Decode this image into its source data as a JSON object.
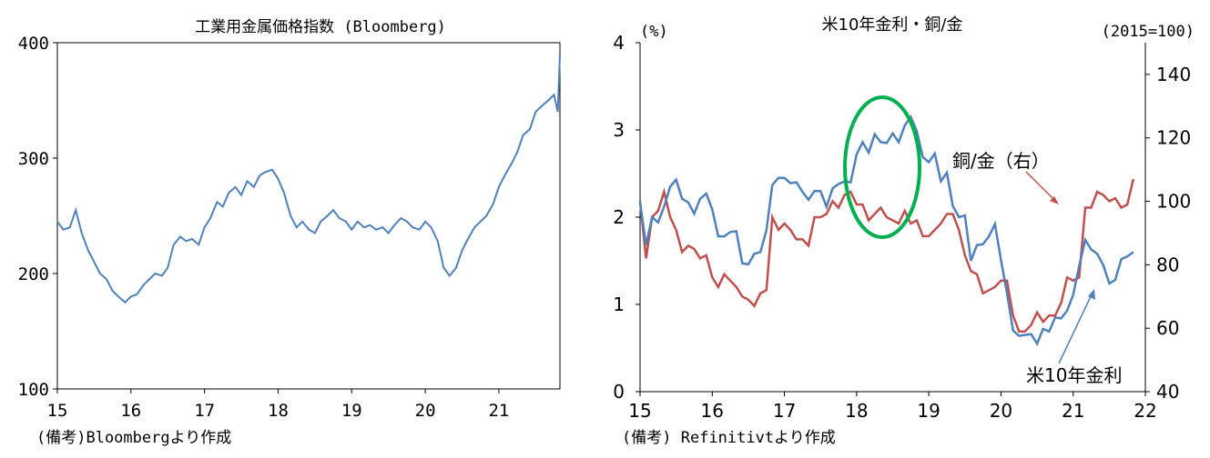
{
  "chart_data": [
    {
      "type": "line",
      "title": "工業用金属価格指数 (Bloomberg)",
      "note": "(備考)Bloombergより作成",
      "x_ticks": [
        "15",
        "16",
        "17",
        "18",
        "19",
        "20",
        "21"
      ],
      "y_ticks": [
        "100",
        "200",
        "300",
        "400"
      ],
      "ylim": [
        100,
        400
      ],
      "xlim": [
        2015.0,
        2021.83
      ],
      "grid": false,
      "series": [
        {
          "color": "#4f81bd",
          "x": [
            2015.0,
            2015.08,
            2015.17,
            2015.25,
            2015.33,
            2015.42,
            2015.5,
            2015.58,
            2015.67,
            2015.75,
            2015.83,
            2015.92,
            2016.0,
            2016.08,
            2016.17,
            2016.25,
            2016.33,
            2016.42,
            2016.5,
            2016.58,
            2016.67,
            2016.75,
            2016.83,
            2016.92,
            2017.0,
            2017.08,
            2017.17,
            2017.25,
            2017.33,
            2017.42,
            2017.5,
            2017.58,
            2017.67,
            2017.75,
            2017.83,
            2017.92,
            2018.0,
            2018.08,
            2018.17,
            2018.25,
            2018.33,
            2018.42,
            2018.5,
            2018.58,
            2018.67,
            2018.75,
            2018.83,
            2018.92,
            2019.0,
            2019.08,
            2019.17,
            2019.25,
            2019.33,
            2019.42,
            2019.5,
            2019.58,
            2019.67,
            2019.75,
            2019.83,
            2019.92,
            2020.0,
            2020.08,
            2020.17,
            2020.25,
            2020.33,
            2020.42,
            2020.5,
            2020.58,
            2020.67,
            2020.75,
            2020.83,
            2020.92,
            2021.0,
            2021.08,
            2021.17,
            2021.25,
            2021.33,
            2021.42,
            2021.5,
            2021.58,
            2021.67,
            2021.75,
            2021.8,
            2021.83
          ],
          "y": [
            245,
            238,
            240,
            255,
            235,
            220,
            210,
            200,
            195,
            185,
            180,
            175,
            180,
            182,
            190,
            195,
            200,
            198,
            205,
            225,
            232,
            228,
            230,
            225,
            240,
            248,
            262,
            258,
            270,
            275,
            268,
            280,
            275,
            285,
            288,
            290,
            282,
            270,
            250,
            240,
            245,
            238,
            235,
            245,
            250,
            255,
            248,
            245,
            238,
            245,
            240,
            242,
            238,
            240,
            235,
            242,
            248,
            245,
            240,
            238,
            245,
            240,
            228,
            205,
            198,
            205,
            220,
            230,
            240,
            245,
            250,
            260,
            275,
            285,
            295,
            305,
            320,
            325,
            340,
            345,
            350,
            355,
            340,
            390
          ]
        }
      ]
    },
    {
      "type": "line",
      "title": "米10年金利・銅/金",
      "note": "(備考) Refinitivtより作成",
      "left_unit": "(%)",
      "right_unit": "(2015=100)",
      "x_ticks": [
        "15",
        "16",
        "17",
        "18",
        "19",
        "20",
        "21",
        "22"
      ],
      "y_ticks_left": [
        "0",
        "1",
        "2",
        "3",
        "4"
      ],
      "y_ticks_right": [
        "40",
        "60",
        "80",
        "100",
        "120",
        "140"
      ],
      "ylim_left": [
        0,
        4
      ],
      "ylim_right": [
        40,
        150
      ],
      "xlim": [
        2015.0,
        2022.0
      ],
      "grid": false,
      "series": [
        {
          "name": "米10年金利",
          "axis": "left",
          "color": "#4f81bd",
          "x": [
            2015.0,
            2015.083,
            2015.167,
            2015.25,
            2015.333,
            2015.417,
            2015.5,
            2015.583,
            2015.667,
            2015.75,
            2015.833,
            2015.917,
            2016.0,
            2016.083,
            2016.167,
            2016.25,
            2016.333,
            2016.417,
            2016.5,
            2016.583,
            2016.667,
            2016.75,
            2016.833,
            2016.917,
            2017.0,
            2017.083,
            2017.167,
            2017.25,
            2017.333,
            2017.417,
            2017.5,
            2017.583,
            2017.667,
            2017.75,
            2017.833,
            2017.917,
            2018.0,
            2018.083,
            2018.167,
            2018.25,
            2018.333,
            2018.417,
            2018.5,
            2018.583,
            2018.667,
            2018.75,
            2018.833,
            2018.917,
            2019.0,
            2019.083,
            2019.167,
            2019.25,
            2019.333,
            2019.417,
            2019.5,
            2019.583,
            2019.667,
            2019.75,
            2019.833,
            2019.917,
            2020.0,
            2020.083,
            2020.167,
            2020.25,
            2020.333,
            2020.417,
            2020.5,
            2020.583,
            2020.667,
            2020.75,
            2020.833,
            2020.917,
            2021.0,
            2021.083,
            2021.167,
            2021.25,
            2021.333,
            2021.417,
            2021.5,
            2021.583,
            2021.667,
            2021.75,
            2021.833
          ],
          "y": [
            2.17,
            1.68,
            2.0,
            1.94,
            2.12,
            2.35,
            2.43,
            2.21,
            2.17,
            2.04,
            2.21,
            2.27,
            2.09,
            1.78,
            1.78,
            1.83,
            1.84,
            1.47,
            1.46,
            1.58,
            1.6,
            1.85,
            2.37,
            2.45,
            2.45,
            2.39,
            2.4,
            2.29,
            2.2,
            2.3,
            2.3,
            2.12,
            2.33,
            2.38,
            2.41,
            2.4,
            2.72,
            2.86,
            2.74,
            2.95,
            2.86,
            2.85,
            2.96,
            2.86,
            3.05,
            3.15,
            2.99,
            2.69,
            2.63,
            2.73,
            2.41,
            2.51,
            2.13,
            2.0,
            2.02,
            1.5,
            1.68,
            1.69,
            1.78,
            1.92,
            1.51,
            1.13,
            0.7,
            0.64,
            0.65,
            0.66,
            0.55,
            0.72,
            0.69,
            0.85,
            0.84,
            0.93,
            1.11,
            1.44,
            1.74,
            1.63,
            1.58,
            1.45,
            1.24,
            1.28,
            1.52,
            1.55,
            1.6
          ]
        },
        {
          "name": "銅/金（右）",
          "axis": "right",
          "color": "#c0504d",
          "x": [
            2015.0,
            2015.083,
            2015.167,
            2015.25,
            2015.333,
            2015.417,
            2015.5,
            2015.583,
            2015.667,
            2015.75,
            2015.833,
            2015.917,
            2016.0,
            2016.083,
            2016.167,
            2016.25,
            2016.333,
            2016.417,
            2016.5,
            2016.583,
            2016.667,
            2016.75,
            2016.833,
            2016.917,
            2017.0,
            2017.083,
            2017.167,
            2017.25,
            2017.333,
            2017.417,
            2017.5,
            2017.583,
            2017.667,
            2017.75,
            2017.833,
            2017.917,
            2018.0,
            2018.083,
            2018.167,
            2018.25,
            2018.333,
            2018.417,
            2018.5,
            2018.583,
            2018.667,
            2018.75,
            2018.833,
            2018.917,
            2019.0,
            2019.083,
            2019.167,
            2019.25,
            2019.333,
            2019.417,
            2019.5,
            2019.583,
            2019.667,
            2019.75,
            2019.833,
            2019.917,
            2020.0,
            2020.083,
            2020.167,
            2020.25,
            2020.333,
            2020.417,
            2020.5,
            2020.583,
            2020.667,
            2020.75,
            2020.833,
            2020.917,
            2021.0,
            2021.083,
            2021.167,
            2021.25,
            2021.333,
            2021.417,
            2021.5,
            2021.583,
            2021.667,
            2021.75,
            2021.833
          ],
          "y": [
            100,
            82,
            95,
            97,
            103,
            95,
            91,
            84,
            86,
            85,
            82,
            83,
            76,
            73,
            77,
            75,
            73,
            70,
            69,
            67,
            71,
            72,
            95,
            91,
            93,
            91,
            88,
            88,
            86,
            95,
            95,
            96,
            100,
            98,
            102,
            103,
            99,
            99,
            94,
            96,
            98,
            95,
            94,
            93,
            97,
            93,
            94,
            89,
            89,
            91,
            93,
            96,
            96,
            91,
            83,
            78,
            77,
            71,
            72,
            73,
            75,
            75,
            64,
            59,
            59,
            61,
            65,
            62,
            64,
            64,
            68,
            76,
            75,
            76,
            98,
            98,
            103,
            102,
            100,
            101,
            98,
            99,
            107
          ]
        }
      ],
      "annotations": [
        {
          "text": "銅/金（右）",
          "color": "#c0504d"
        },
        {
          "text": "米10年金利",
          "color": "#4f81bd"
        }
      ]
    }
  ]
}
